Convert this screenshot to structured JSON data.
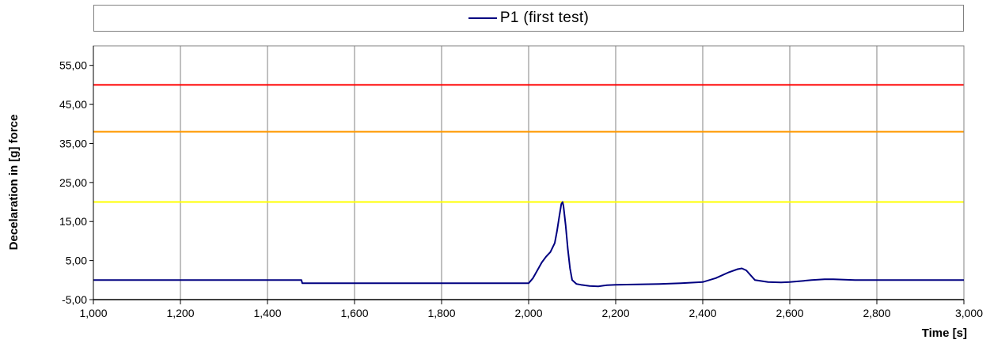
{
  "chart_data": {
    "type": "line",
    "title": "",
    "xlabel": "Time [s]",
    "ylabel": "Decelaration in [g]  force",
    "xlim": [
      1.0,
      3.0
    ],
    "ylim": [
      -5,
      60
    ],
    "x_ticks": [
      1.0,
      1.2,
      1.4,
      1.6,
      1.8,
      2.0,
      2.2,
      2.4,
      2.6,
      2.8,
      3.0
    ],
    "x_tick_labels": [
      "1,000",
      "1,200",
      "1,400",
      "1,600",
      "1,800",
      "2,000",
      "2,200",
      "2,400",
      "2,600",
      "2,800",
      "3,000"
    ],
    "y_ticks": [
      -5,
      5,
      15,
      25,
      35,
      45,
      55
    ],
    "y_tick_labels": [
      "-5,00",
      "5,00",
      "15,00",
      "25,00",
      "35,00",
      "45,00",
      "55,00"
    ],
    "grid": true,
    "legend_position": "top",
    "series": [
      {
        "name": "P1 (first test)",
        "color": "#000080",
        "x": [
          1.0,
          1.1,
          1.2,
          1.3,
          1.4,
          1.478,
          1.48,
          1.5,
          1.6,
          1.7,
          1.8,
          1.9,
          2.0,
          2.01,
          2.02,
          2.03,
          2.04,
          2.05,
          2.06,
          2.065,
          2.07,
          2.075,
          2.078,
          2.08,
          2.085,
          2.09,
          2.095,
          2.1,
          2.11,
          2.12,
          2.14,
          2.16,
          2.18,
          2.2,
          2.25,
          2.3,
          2.35,
          2.4,
          2.43,
          2.46,
          2.48,
          2.49,
          2.5,
          2.52,
          2.55,
          2.58,
          2.6,
          2.65,
          2.68,
          2.7,
          2.75,
          2.8,
          2.9,
          3.0
        ],
        "y": [
          0.0,
          0.0,
          0.0,
          0.0,
          0.0,
          0.0,
          -0.8,
          -0.8,
          -0.8,
          -0.8,
          -0.8,
          -0.8,
          -0.8,
          0.5,
          2.5,
          4.5,
          6.0,
          7.2,
          9.5,
          12.5,
          16.0,
          19.5,
          20.0,
          19.0,
          14.0,
          8.0,
          3.0,
          0.0,
          -1.0,
          -1.2,
          -1.5,
          -1.6,
          -1.3,
          -1.2,
          -1.1,
          -1.0,
          -0.8,
          -0.5,
          0.5,
          2.0,
          2.8,
          3.0,
          2.5,
          0.0,
          -0.5,
          -0.6,
          -0.5,
          0.0,
          0.2,
          0.2,
          0.0,
          0.0,
          0.0,
          0.0
        ]
      }
    ],
    "reference_lines": [
      {
        "y": 50,
        "color": "#ff0000"
      },
      {
        "y": 38,
        "color": "#ff9900"
      },
      {
        "y": 20,
        "color": "#ffff00"
      }
    ]
  }
}
